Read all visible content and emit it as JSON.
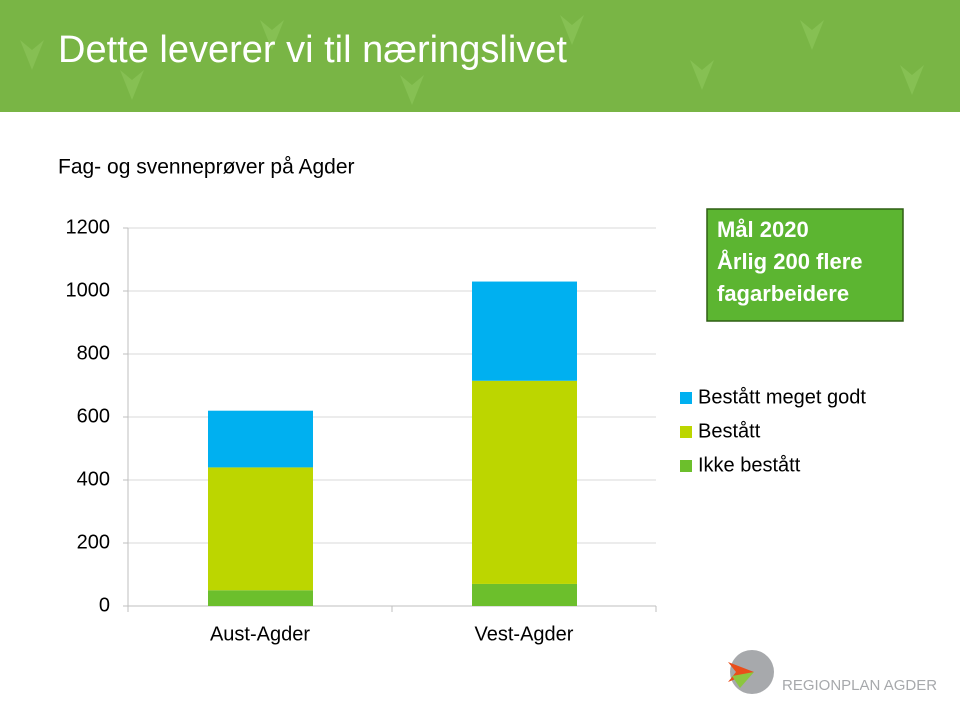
{
  "slide": {
    "title": "Dette leverer vi til næringslivet"
  },
  "chart_data": {
    "type": "stacked-bar",
    "title": "Fag- og svenneprøver på Agder",
    "categories": [
      "Aust-Agder",
      "Vest-Agder"
    ],
    "series": [
      {
        "name": "Ikke bestått",
        "color": "#6cbf2c",
        "values": [
          50,
          70
        ]
      },
      {
        "name": "Bestått",
        "color": "#bcd600",
        "values": [
          390,
          645
        ]
      },
      {
        "name": "Bestått meget godt",
        "color": "#00b0f0",
        "values": [
          180,
          315
        ]
      }
    ],
    "ylim": [
      0,
      1200
    ],
    "yticks": [
      0,
      200,
      400,
      600,
      800,
      1000,
      1200
    ],
    "grid": true,
    "legend": "right",
    "annotation": [
      "Mål 2020",
      "Årlig 200 flere",
      "fagarbeidere"
    ]
  },
  "footer": {
    "logo_text": "REGIONPLAN AGDER"
  }
}
